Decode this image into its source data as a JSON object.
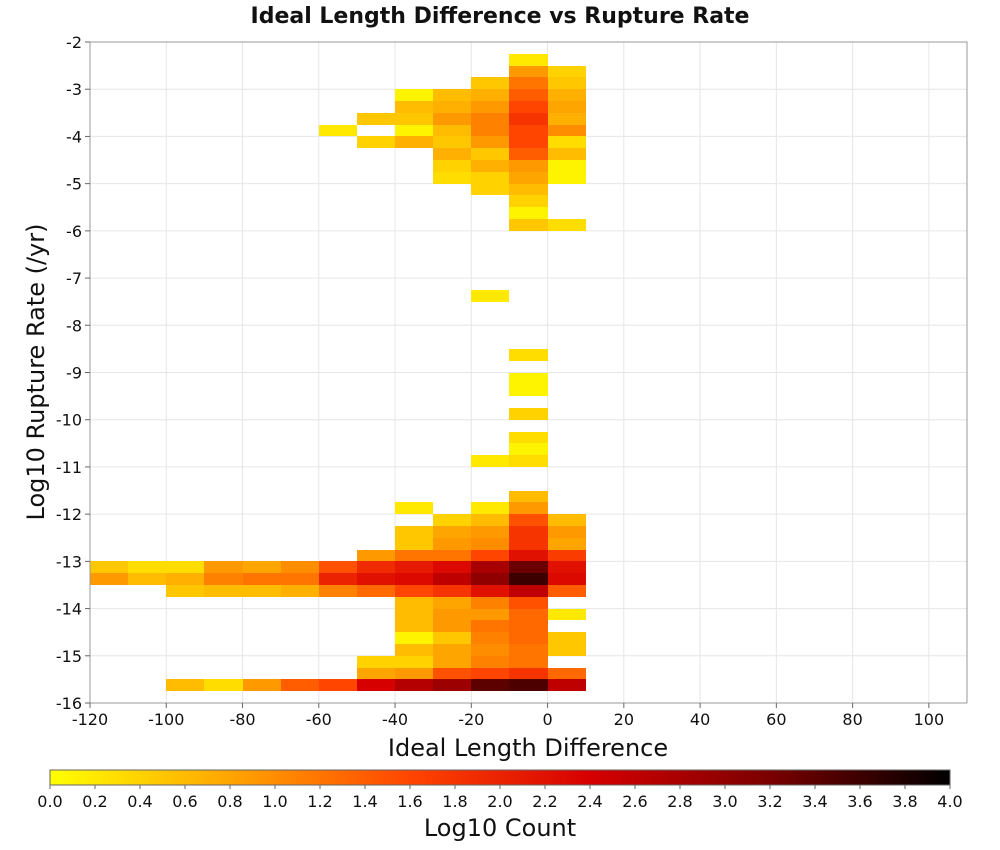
{
  "chart_data": {
    "type": "heatmap",
    "title": "Ideal Length Difference vs Rupture Rate",
    "xlabel": "Ideal Length Difference",
    "ylabel": "Log10 Rupture Rate (/yr)",
    "xlim": [
      -120,
      110
    ],
    "ylim": [
      -16,
      -2
    ],
    "x_ticks": [
      "-120",
      "-100",
      "-80",
      "-60",
      "-40",
      "-20",
      "0",
      "20",
      "40",
      "60",
      "80",
      "100"
    ],
    "y_ticks": [
      "-2",
      "-3",
      "-4",
      "-5",
      "-6",
      "-7",
      "-8",
      "-9",
      "-10",
      "-11",
      "-12",
      "-13",
      "-14",
      "-15",
      "-16"
    ],
    "grid": true,
    "bin_width": 10,
    "bin_height": 0.25,
    "colorbar": {
      "label": "Log10 Count",
      "min": 0.0,
      "max": 4.0,
      "ticks": [
        "0.0",
        "0.2",
        "0.4",
        "0.6",
        "0.8",
        "1.0",
        "1.2",
        "1.4",
        "1.6",
        "1.8",
        "2.0",
        "2.2",
        "2.4",
        "2.6",
        "2.8",
        "3.0",
        "3.2",
        "3.4",
        "3.6",
        "3.8",
        "4.0"
      ],
      "colors": [
        "#ffff00",
        "#ffa500",
        "#ff4500",
        "#d60000",
        "#7a0000",
        "#000000"
      ]
    },
    "cells": [
      [
        -10,
        -2.25,
        0.2
      ],
      [
        -10,
        -2.5,
        0.9
      ],
      [
        0,
        -2.5,
        0.4
      ],
      [
        -20,
        -2.75,
        0.5
      ],
      [
        -10,
        -2.75,
        1.2
      ],
      [
        0,
        -2.75,
        0.5
      ],
      [
        -40,
        -3.0,
        0.1
      ],
      [
        -30,
        -3.0,
        0.6
      ],
      [
        -20,
        -3.0,
        0.7
      ],
      [
        -10,
        -3.0,
        1.4
      ],
      [
        0,
        -3.0,
        0.7
      ],
      [
        -40,
        -3.25,
        0.6
      ],
      [
        -30,
        -3.25,
        0.7
      ],
      [
        -20,
        -3.25,
        0.9
      ],
      [
        -10,
        -3.25,
        1.6
      ],
      [
        0,
        -3.25,
        0.8
      ],
      [
        -50,
        -3.5,
        0.5
      ],
      [
        -40,
        -3.5,
        0.5
      ],
      [
        -30,
        -3.5,
        0.9
      ],
      [
        -20,
        -3.5,
        1.1
      ],
      [
        -10,
        -3.5,
        1.8
      ],
      [
        0,
        -3.5,
        0.7
      ],
      [
        -60,
        -3.75,
        0.2
      ],
      [
        -40,
        -3.75,
        0.1
      ],
      [
        -30,
        -3.75,
        0.6
      ],
      [
        -20,
        -3.75,
        1.1
      ],
      [
        -10,
        -3.75,
        1.6
      ],
      [
        0,
        -3.75,
        1.0
      ],
      [
        -50,
        -4.0,
        0.4
      ],
      [
        -40,
        -4.0,
        0.7
      ],
      [
        -30,
        -4.0,
        0.5
      ],
      [
        -20,
        -4.0,
        0.9
      ],
      [
        -10,
        -4.0,
        1.6
      ],
      [
        0,
        -4.0,
        0.3
      ],
      [
        -30,
        -4.25,
        0.7
      ],
      [
        -20,
        -4.25,
        0.5
      ],
      [
        -10,
        -4.25,
        1.4
      ],
      [
        0,
        -4.25,
        0.6
      ],
      [
        -30,
        -4.5,
        0.4
      ],
      [
        -20,
        -4.5,
        0.7
      ],
      [
        -10,
        -4.5,
        0.9
      ],
      [
        0,
        -4.5,
        0.1
      ],
      [
        -30,
        -4.75,
        0.3
      ],
      [
        -20,
        -4.75,
        0.4
      ],
      [
        -10,
        -4.75,
        0.8
      ],
      [
        0,
        -4.75,
        0.1
      ],
      [
        -20,
        -5.0,
        0.4
      ],
      [
        -10,
        -5.0,
        0.6
      ],
      [
        -10,
        -5.25,
        0.4
      ],
      [
        -10,
        -5.5,
        0.1
      ],
      [
        -10,
        -5.75,
        0.5
      ],
      [
        0,
        -5.75,
        0.3
      ],
      [
        -20,
        -7.25,
        0.2
      ],
      [
        -10,
        -8.5,
        0.3
      ],
      [
        -10,
        -9.0,
        0.1
      ],
      [
        -10,
        -9.25,
        0.1
      ],
      [
        -10,
        -9.75,
        0.4
      ],
      [
        -10,
        -10.25,
        0.3
      ],
      [
        -10,
        -10.5,
        0.1
      ],
      [
        -20,
        -10.75,
        0.2
      ],
      [
        -10,
        -10.75,
        0.3
      ],
      [
        -10,
        -11.5,
        0.6
      ],
      [
        -40,
        -11.75,
        0.2
      ],
      [
        -20,
        -11.75,
        0.2
      ],
      [
        -10,
        -11.75,
        0.9
      ],
      [
        -30,
        -12.0,
        0.4
      ],
      [
        -20,
        -12.0,
        0.6
      ],
      [
        -10,
        -12.0,
        1.5
      ],
      [
        0,
        -12.0,
        0.6
      ],
      [
        -40,
        -12.25,
        0.5
      ],
      [
        -30,
        -12.25,
        0.8
      ],
      [
        -20,
        -12.25,
        0.9
      ],
      [
        -10,
        -12.25,
        1.8
      ],
      [
        0,
        -12.25,
        0.9
      ],
      [
        -40,
        -12.5,
        0.5
      ],
      [
        -30,
        -12.5,
        0.9
      ],
      [
        -20,
        -12.5,
        1.0
      ],
      [
        -10,
        -12.5,
        1.8
      ],
      [
        0,
        -12.5,
        0.8
      ],
      [
        -50,
        -12.75,
        0.9
      ],
      [
        -40,
        -12.75,
        1.2
      ],
      [
        -30,
        -12.75,
        1.2
      ],
      [
        -20,
        -12.75,
        1.6
      ],
      [
        -10,
        -12.75,
        2.2
      ],
      [
        0,
        -12.75,
        1.7
      ],
      [
        -120,
        -13.0,
        0.5
      ],
      [
        -110,
        -13.0,
        0.3
      ],
      [
        -100,
        -13.0,
        0.3
      ],
      [
        -90,
        -13.0,
        0.9
      ],
      [
        -80,
        -13.0,
        0.8
      ],
      [
        -70,
        -13.0,
        1.0
      ],
      [
        -60,
        -13.0,
        1.5
      ],
      [
        -50,
        -13.0,
        1.9
      ],
      [
        -40,
        -13.0,
        2.1
      ],
      [
        -30,
        -13.0,
        2.3
      ],
      [
        -20,
        -13.0,
        2.8
      ],
      [
        -10,
        -13.0,
        3.3
      ],
      [
        0,
        -13.0,
        2.2
      ],
      [
        -120,
        -13.25,
        0.9
      ],
      [
        -110,
        -13.25,
        0.6
      ],
      [
        -100,
        -13.25,
        0.7
      ],
      [
        -90,
        -13.25,
        1.1
      ],
      [
        -80,
        -13.25,
        1.2
      ],
      [
        -70,
        -13.25,
        1.2
      ],
      [
        -60,
        -13.25,
        2.0
      ],
      [
        -50,
        -13.25,
        2.2
      ],
      [
        -40,
        -13.25,
        2.3
      ],
      [
        -30,
        -13.25,
        2.6
      ],
      [
        -20,
        -13.25,
        3.0
      ],
      [
        -10,
        -13.25,
        3.6
      ],
      [
        0,
        -13.25,
        2.3
      ],
      [
        -100,
        -13.5,
        0.5
      ],
      [
        -90,
        -13.5,
        0.6
      ],
      [
        -80,
        -13.5,
        0.6
      ],
      [
        -70,
        -13.5,
        0.7
      ],
      [
        -60,
        -13.5,
        1.1
      ],
      [
        -50,
        -13.5,
        1.3
      ],
      [
        -40,
        -13.5,
        1.6
      ],
      [
        -30,
        -13.5,
        1.8
      ],
      [
        -20,
        -13.5,
        2.2
      ],
      [
        -10,
        -13.5,
        2.6
      ],
      [
        0,
        -13.5,
        1.4
      ],
      [
        -40,
        -13.75,
        0.6
      ],
      [
        -30,
        -13.75,
        0.8
      ],
      [
        -20,
        -13.75,
        1.1
      ],
      [
        -10,
        -13.75,
        1.5
      ],
      [
        -40,
        -14.0,
        0.6
      ],
      [
        -30,
        -14.0,
        0.9
      ],
      [
        -20,
        -14.0,
        0.9
      ],
      [
        -10,
        -14.0,
        1.3
      ],
      [
        0,
        -14.0,
        0.2
      ],
      [
        -40,
        -14.25,
        0.6
      ],
      [
        -30,
        -14.25,
        0.9
      ],
      [
        -20,
        -14.25,
        1.2
      ],
      [
        -10,
        -14.25,
        1.3
      ],
      [
        -40,
        -14.5,
        0.1
      ],
      [
        -30,
        -14.5,
        0.5
      ],
      [
        -20,
        -14.5,
        1.1
      ],
      [
        -10,
        -14.5,
        1.3
      ],
      [
        0,
        -14.5,
        0.5
      ],
      [
        -40,
        -14.75,
        0.6
      ],
      [
        -30,
        -14.75,
        0.8
      ],
      [
        -20,
        -14.75,
        1.0
      ],
      [
        -10,
        -14.75,
        1.2
      ],
      [
        0,
        -14.75,
        0.5
      ],
      [
        -50,
        -15.0,
        0.4
      ],
      [
        -40,
        -15.0,
        0.4
      ],
      [
        -30,
        -15.0,
        0.8
      ],
      [
        -20,
        -15.0,
        1.1
      ],
      [
        -10,
        -15.0,
        1.2
      ],
      [
        -50,
        -15.25,
        0.8
      ],
      [
        -40,
        -15.25,
        0.9
      ],
      [
        -30,
        -15.25,
        1.5
      ],
      [
        -20,
        -15.25,
        1.6
      ],
      [
        -10,
        -15.25,
        1.8
      ],
      [
        0,
        -15.25,
        1.3
      ],
      [
        -100,
        -15.5,
        0.6
      ],
      [
        -90,
        -15.5,
        0.3
      ],
      [
        -80,
        -15.5,
        0.9
      ],
      [
        -70,
        -15.5,
        1.4
      ],
      [
        -60,
        -15.5,
        1.6
      ],
      [
        -50,
        -15.5,
        2.4
      ],
      [
        -40,
        -15.5,
        2.7
      ],
      [
        -30,
        -15.5,
        2.9
      ],
      [
        -20,
        -15.5,
        3.4
      ],
      [
        -10,
        -15.5,
        3.5
      ],
      [
        0,
        -15.5,
        2.6
      ]
    ]
  }
}
